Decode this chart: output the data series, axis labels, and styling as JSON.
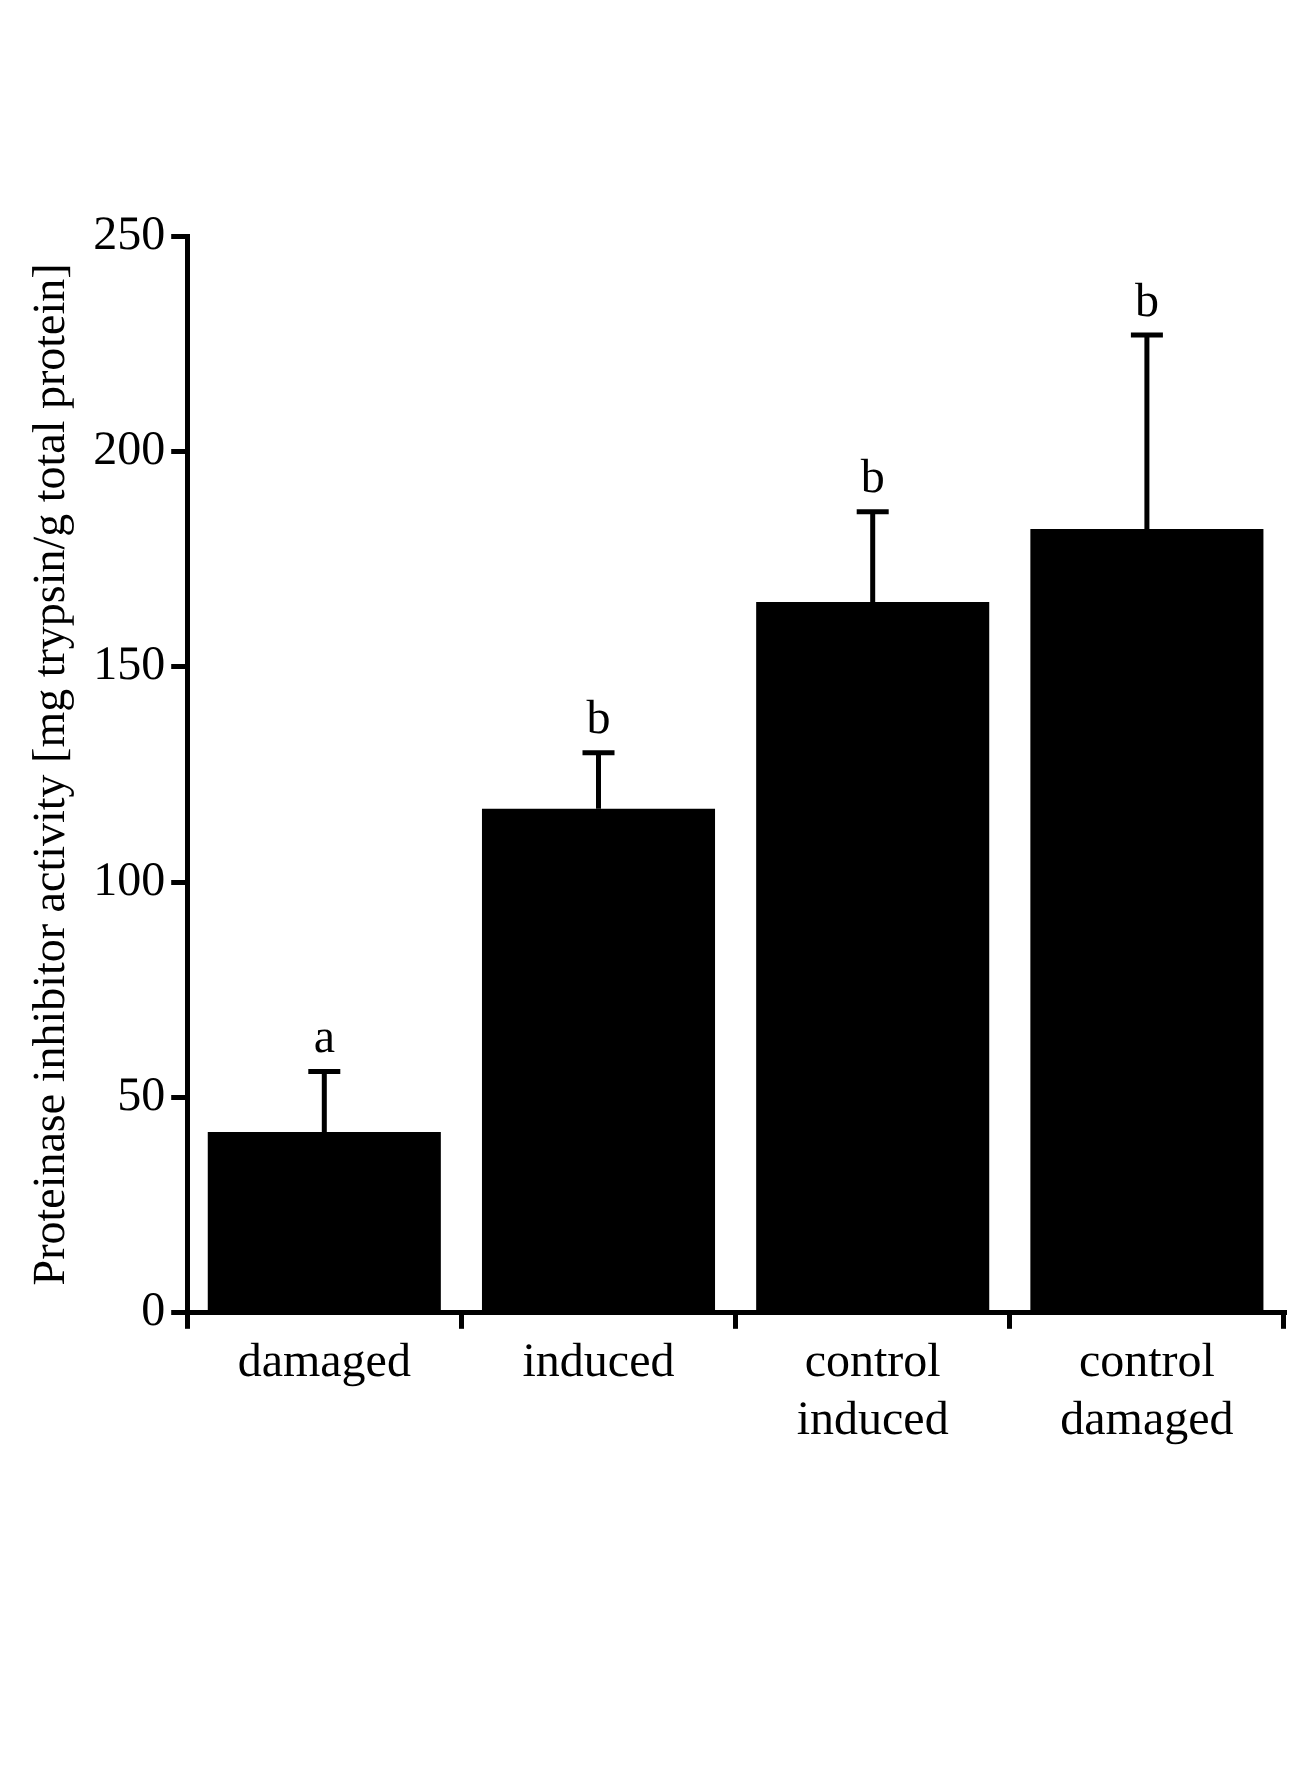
{
  "chart_data": {
    "type": "bar",
    "ylabel": "Proteinase inhibitor activity [mg trypsin/g total protein]",
    "categories": [
      "damaged",
      "induced",
      "control induced",
      "control damaged"
    ],
    "values": [
      42,
      117,
      165,
      182
    ],
    "errors": [
      14,
      13,
      21,
      45
    ],
    "color": "#000000",
    "ylim": [
      0,
      250
    ],
    "yticks": [
      0,
      50,
      100,
      150,
      200,
      250
    ],
    "grid": false,
    "legend": false,
    "annotations": [
      {
        "text": "a",
        "x": "damaged",
        "y": 56
      },
      {
        "text": "b",
        "x": "induced",
        "y": 130
      },
      {
        "text": "b",
        "x": "control induced",
        "y": 186
      },
      {
        "text": "b",
        "x": "control damaged",
        "y": 227
      }
    ]
  }
}
